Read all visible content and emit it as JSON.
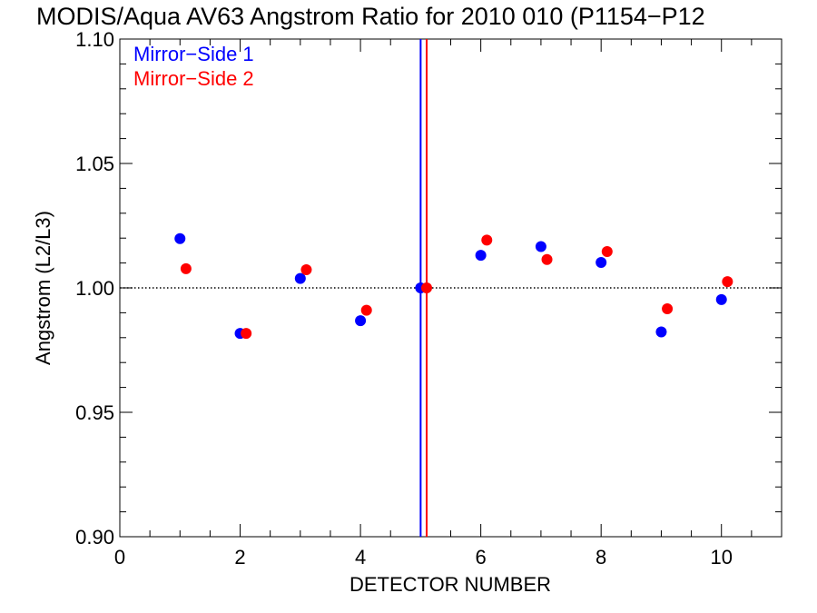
{
  "chart_data": {
    "type": "scatter",
    "title": "MODIS/Aqua AV63 Angstrom Ratio for 2010 010 (P1154−P12",
    "xlabel": "DETECTOR NUMBER",
    "ylabel": "Angstrom (L2/L3)",
    "xlim": [
      0,
      11
    ],
    "ylim": [
      0.9,
      1.1
    ],
    "x_ticks": [
      0,
      2,
      4,
      6,
      8,
      10
    ],
    "x_tick_labels": [
      "0",
      "2",
      "4",
      "6",
      "8",
      "10"
    ],
    "y_ticks": [
      0.9,
      0.95,
      1.0,
      1.05,
      1.1
    ],
    "y_tick_labels": [
      "0.90",
      "0.95",
      "1.00",
      "1.05",
      "1.10"
    ],
    "reference_line_y": 1.0,
    "legend_placement": "top-left",
    "series": [
      {
        "name": "Mirror−Side 1",
        "color": "#0000ff",
        "x": [
          1,
          2,
          3,
          4,
          5,
          6,
          7,
          8,
          9,
          10
        ],
        "y": [
          1.0198,
          0.9817,
          1.0038,
          0.9868,
          1.0,
          1.0131,
          1.0166,
          1.0102,
          0.9823,
          0.9953
        ],
        "vline_x": 5.0
      },
      {
        "name": "Mirror−Side 2",
        "color": "#ff0000",
        "x": [
          1.1,
          2.1,
          3.1,
          4.1,
          5.1,
          6.1,
          7.1,
          8.1,
          9.1,
          10.1
        ],
        "y": [
          1.0077,
          0.9817,
          1.0073,
          0.991,
          1.0,
          1.0192,
          1.0114,
          1.0146,
          0.9916,
          1.0025
        ],
        "vline_x": 5.1
      }
    ]
  }
}
